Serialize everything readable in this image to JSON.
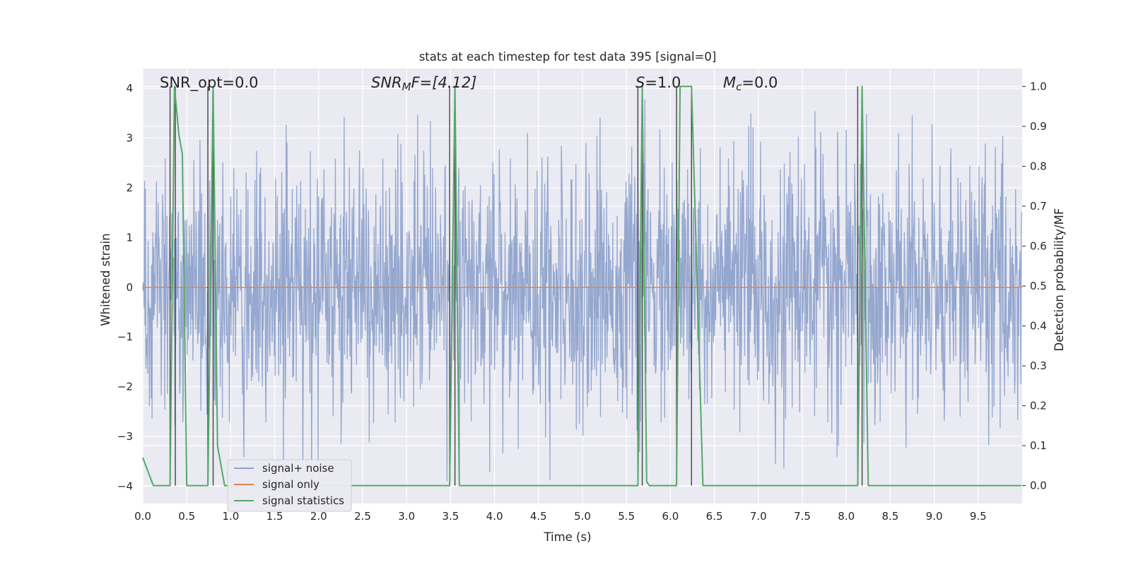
{
  "chart_data": {
    "type": "line",
    "title": "stats at each timestep for test data 395 [signal=0]",
    "xlabel": "Time (s)",
    "ylabel": "Whitened strain",
    "ylabel_right": "Detection probability/MF",
    "xlim": [
      0.0,
      10.0
    ],
    "ylim": [
      -4.35,
      4.4
    ],
    "ylim_right": [
      -0.045,
      1.045
    ],
    "x_ticks": [
      "0.0",
      "0.5",
      "1.0",
      "1.5",
      "2.0",
      "2.5",
      "3.0",
      "3.5",
      "4.0",
      "4.5",
      "5.0",
      "5.5",
      "6.0",
      "6.5",
      "7.0",
      "7.5",
      "8.0",
      "8.5",
      "9.0",
      "9.5"
    ],
    "x_tick_values": [
      0.0,
      0.5,
      1.0,
      1.5,
      2.0,
      2.5,
      3.0,
      3.5,
      4.0,
      4.5,
      5.0,
      5.5,
      6.0,
      6.5,
      7.0,
      7.5,
      8.0,
      8.5,
      9.0,
      9.5
    ],
    "y_ticks": [
      "4",
      "3",
      "2",
      "1",
      "0",
      "−1",
      "−2",
      "−3",
      "−4"
    ],
    "y_tick_values": [
      4,
      3,
      2,
      1,
      0,
      -1,
      -2,
      -3,
      -4
    ],
    "y_right_ticks": [
      "1.0",
      "0.9",
      "0.8",
      "0.7",
      "0.6",
      "0.5",
      "0.4",
      "0.3",
      "0.2",
      "0.1",
      "0.0"
    ],
    "y_right_tick_values": [
      1.0,
      0.9,
      0.8,
      0.7,
      0.6,
      0.5,
      0.4,
      0.3,
      0.2,
      0.1,
      0.0
    ],
    "grid": true,
    "legend_position": "lower-left",
    "annotations": {
      "snr_opt": "SNR_opt=0.0",
      "snr_mf_base": "SNR",
      "snr_mf_sub": "M",
      "snr_mf_rest": "F=[4.12]",
      "s_var": "S",
      "s_rest": "=1.0",
      "mc_var": "M",
      "mc_sub": "c",
      "mc_rest": "=0.0"
    },
    "series": [
      {
        "name": "signal+ noise",
        "color": "#8fa3cc",
        "noise_sigma": 1.0,
        "noise_sample_rate_hz": 200
      },
      {
        "name": "signal only",
        "color": "#dd8452",
        "x": [
          0.0,
          10.0
        ],
        "y": [
          0.0,
          0.0
        ]
      },
      {
        "name": "signal statistics",
        "color": "#55a868",
        "axis": "right",
        "x": [
          0.0,
          0.12,
          0.31,
          0.31,
          0.36,
          0.41,
          0.45,
          0.5,
          0.74,
          0.74,
          0.8,
          0.85,
          0.93,
          3.49,
          3.49,
          3.55,
          3.6,
          3.6,
          5.63,
          5.63,
          5.68,
          5.73,
          5.76,
          5.86,
          6.07,
          6.07,
          6.11,
          6.24,
          6.24,
          6.37,
          6.37,
          8.13,
          8.13,
          8.18,
          8.25,
          8.25,
          9.99
        ],
        "y": [
          0.07,
          0.0,
          0.0,
          0.0,
          1.0,
          0.88,
          0.83,
          0.0,
          0.0,
          0.0,
          1.0,
          0.1,
          0.0,
          0.0,
          0.0,
          1.0,
          0.0,
          0.0,
          0.0,
          0.0,
          1.0,
          0.01,
          0.0,
          0.0,
          0.0,
          0.0,
          1.0,
          1.0,
          1.0,
          0.0,
          0.0,
          0.0,
          0.0,
          1.0,
          0.0,
          0.0,
          0.0
        ]
      }
    ],
    "vertical_markers": {
      "color": "#4d4d4d",
      "x": [
        0.31,
        0.37,
        0.74,
        0.8,
        3.49,
        3.55,
        5.63,
        5.68,
        6.07,
        6.24,
        8.13,
        8.18
      ]
    }
  }
}
